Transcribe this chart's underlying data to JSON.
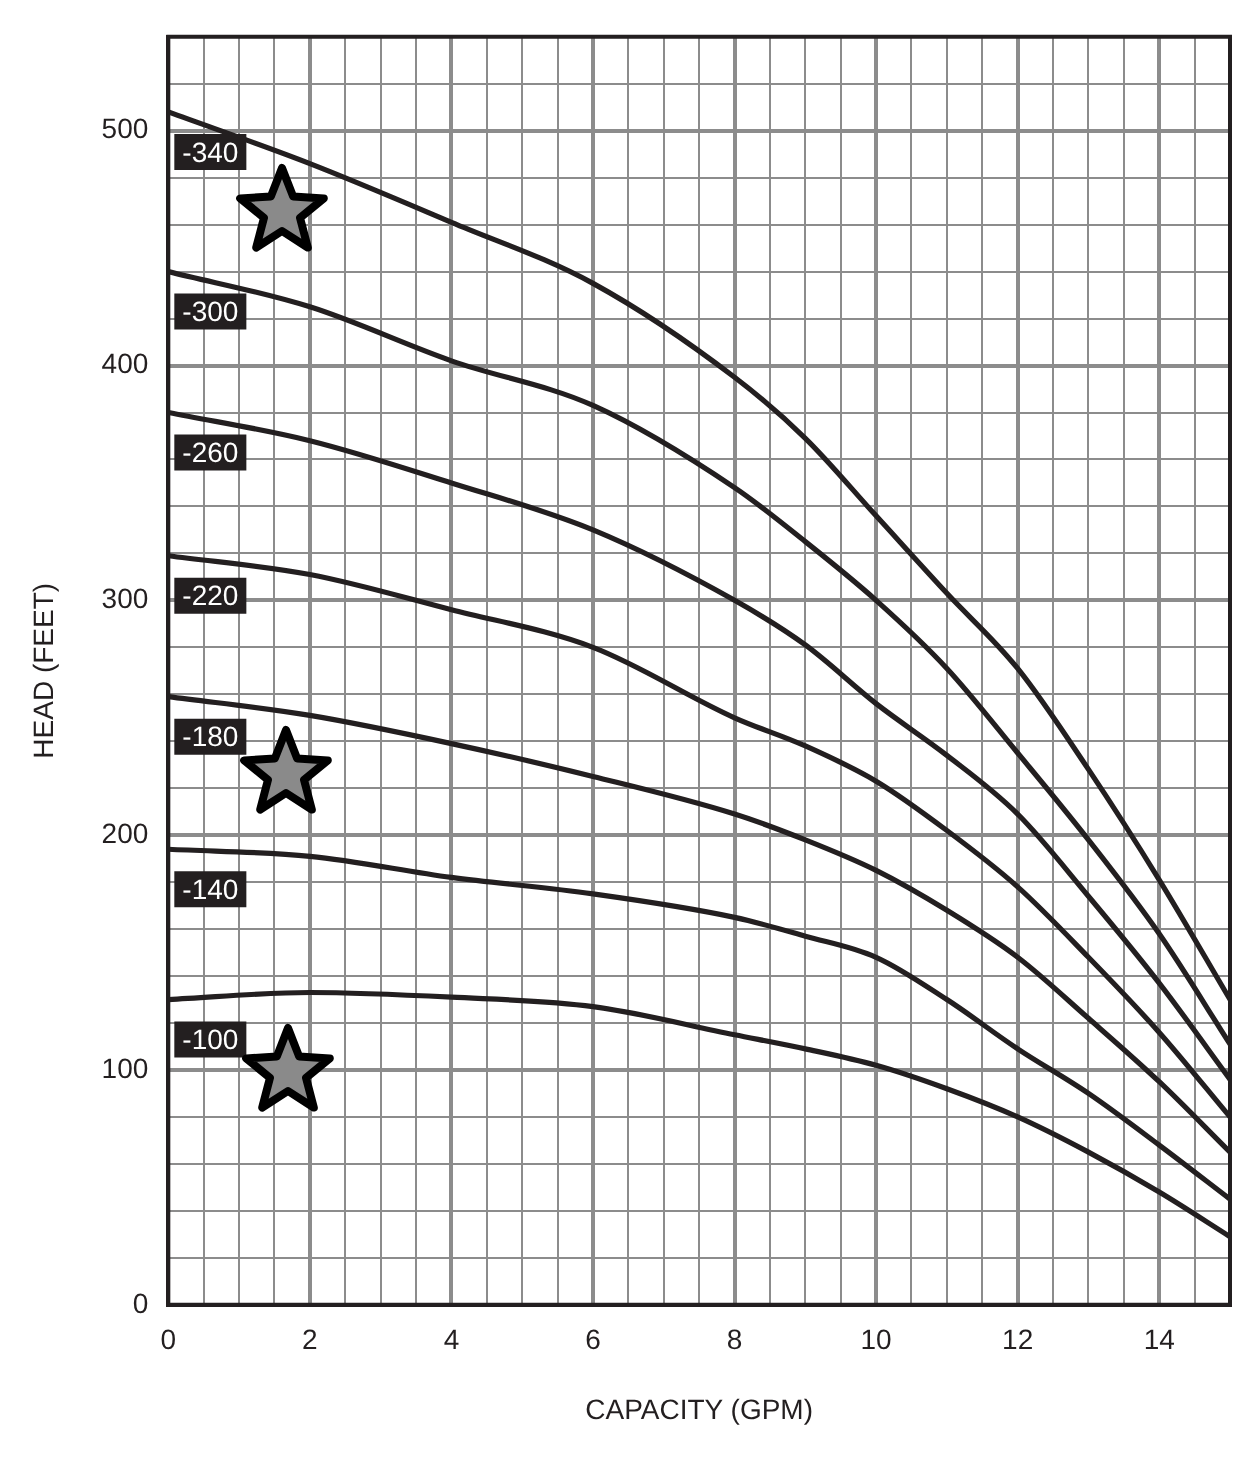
{
  "chart_data": {
    "type": "line",
    "xlabel": "CAPACITY (GPM)",
    "ylabel": "HEAD (FEET)",
    "x": [
      0,
      2,
      4,
      6,
      8,
      9,
      10,
      11,
      12,
      13,
      14,
      15
    ],
    "series": [
      {
        "name": "-340",
        "color": "#231f20",
        "values": [
          508,
          486,
          461,
          435,
          395,
          369,
          336,
          303,
          271,
          228,
          181,
          130
        ]
      },
      {
        "name": "-300",
        "color": "#231f20",
        "values": [
          440,
          425,
          402,
          383,
          348,
          325,
          300,
          271,
          235,
          198,
          158,
          111
        ]
      },
      {
        "name": "-260",
        "color": "#231f20",
        "values": [
          380,
          368,
          350,
          330,
          300,
          281,
          256,
          234,
          209,
          174,
          137,
          96
        ]
      },
      {
        "name": "-220",
        "color": "#231f20",
        "values": [
          319,
          311,
          296,
          280,
          250,
          238,
          223,
          202,
          178,
          148,
          116,
          80
        ]
      },
      {
        "name": "-180",
        "color": "#231f20",
        "values": [
          259,
          251,
          239,
          225,
          209,
          198,
          185,
          168,
          148,
          122,
          95,
          65
        ]
      },
      {
        "name": "-140",
        "color": "#231f20",
        "values": [
          194,
          191,
          182,
          175,
          165,
          157,
          148,
          130,
          109,
          90,
          68,
          45
        ]
      },
      {
        "name": "-100",
        "color": "#231f20",
        "values": [
          130,
          133,
          131,
          127,
          115,
          109,
          102,
          92,
          80,
          65,
          48,
          29
        ]
      }
    ],
    "xlim": [
      0,
      15
    ],
    "xticks": [
      0,
      {
        "value": 0.5,
        "label": null
      },
      {
        "value": 1,
        "label": null
      },
      {
        "value": 1.5,
        "label": null
      },
      2,
      {
        "value": 2.5,
        "label": null
      },
      {
        "value": 3,
        "label": null
      },
      {
        "value": 3.5,
        "label": null
      },
      4,
      {
        "value": 4.5,
        "label": null
      },
      {
        "value": 5,
        "label": null
      },
      {
        "value": 5.5,
        "label": null
      },
      6,
      {
        "value": 6.5,
        "label": null
      },
      {
        "value": 7,
        "label": null
      },
      {
        "value": 7.5,
        "label": null
      },
      8,
      {
        "value": 8.5,
        "label": null
      },
      {
        "value": 9,
        "label": null
      },
      {
        "value": 9.5,
        "label": null
      },
      10,
      {
        "value": 10.5,
        "label": null
      },
      {
        "value": 11,
        "label": null
      },
      {
        "value": 11.5,
        "label": null
      },
      12,
      {
        "value": 12.5,
        "label": null
      },
      {
        "value": 13,
        "label": null
      },
      {
        "value": 13.5,
        "label": null
      },
      14,
      {
        "value": 14.5,
        "label": null
      },
      {
        "value": 15,
        "label": null
      }
    ],
    "ylim": [
      0,
      540
    ],
    "yticks": [
      0,
      {
        "value": 20,
        "label": null
      },
      {
        "value": 40,
        "label": null
      },
      {
        "value": 60,
        "label": null
      },
      {
        "value": 80,
        "label": null
      },
      100,
      {
        "value": 120,
        "label": null
      },
      {
        "value": 140,
        "label": null
      },
      {
        "value": 160,
        "label": null
      },
      {
        "value": 180,
        "label": null
      },
      200,
      {
        "value": 220,
        "label": null
      },
      {
        "value": 240,
        "label": null
      },
      {
        "value": 260,
        "label": null
      },
      {
        "value": 280,
        "label": null
      },
      300,
      {
        "value": 320,
        "label": null
      },
      {
        "value": 340,
        "label": null
      },
      {
        "value": 360,
        "label": null
      },
      {
        "value": 380,
        "label": null
      },
      400,
      {
        "value": 420,
        "label": null
      },
      {
        "value": 440,
        "label": null
      },
      {
        "value": 460,
        "label": null
      },
      {
        "value": 480,
        "label": null
      },
      500,
      {
        "value": 520,
        "label": null
      },
      {
        "value": 540,
        "label": null
      }
    ],
    "grid": true,
    "legend": false,
    "marker": "none",
    "line_style": "solid"
  }
}
